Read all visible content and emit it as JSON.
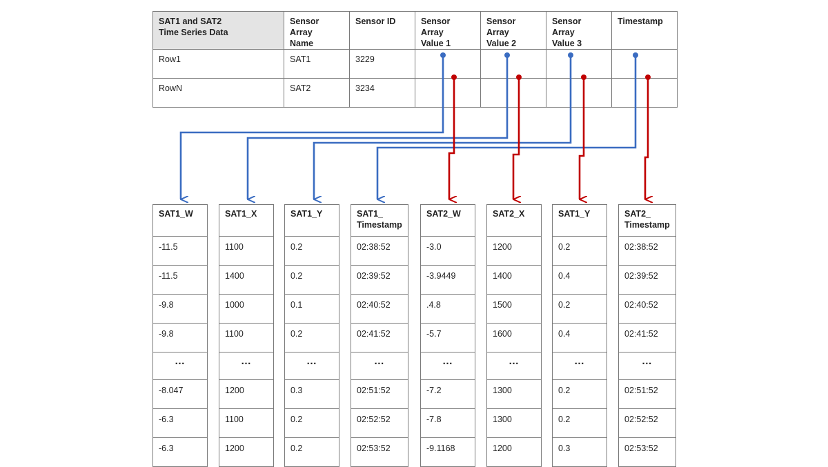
{
  "source_table": {
    "headers": [
      "SAT1 and SAT2\nTime Series Data",
      "Sensor Array\nName",
      "Sensor ID",
      "Sensor Array\nValue 1",
      "Sensor Array\nValue 2",
      "Sensor Array\nValue 3",
      "Timestamp"
    ],
    "rows": [
      [
        "Row1",
        "SAT1",
        "3229",
        "",
        "",
        "",
        ""
      ],
      [
        "RowN",
        "SAT2",
        "3234",
        "",
        "",
        "",
        ""
      ]
    ]
  },
  "column_tables": [
    {
      "header": "SAT1_W",
      "values": [
        "-11.5",
        "-11.5",
        "-9.8",
        "-9.8",
        "...",
        "-8.047",
        "-6.3",
        "-6.3"
      ]
    },
    {
      "header": "SAT1_X",
      "values": [
        "1100",
        "1400",
        "1000",
        "1100",
        "...",
        "1200",
        "1100",
        "1200"
      ]
    },
    {
      "header": "SAT1_Y",
      "values": [
        "0.2",
        "0.2",
        "0.1",
        "0.2",
        "...",
        "0.3",
        "0.2",
        "0.2"
      ]
    },
    {
      "header": "SAT1_\nTimestamp",
      "values": [
        "02:38:52",
        "02:39:52",
        "02:40:52",
        "02:41:52",
        "...",
        "02:51:52",
        "02:52:52",
        "02:53:52"
      ]
    },
    {
      "header": "SAT2_W",
      "values": [
        "-3.0",
        "-3.9449",
        ".4.8",
        "-5.7",
        "...",
        "-7.2",
        "-7.8",
        "-9.1168"
      ]
    },
    {
      "header": "SAT2_X",
      "values": [
        "1200",
        "1400",
        "1500",
        "1600",
        "...",
        "1300",
        "1300",
        "1200"
      ]
    },
    {
      "header": "SAT1_Y",
      "values": [
        "0.2",
        "0.4",
        "0.2",
        "0.4",
        "...",
        "0.2",
        "0.2",
        "0.3"
      ]
    },
    {
      "header": "SAT2_\nTimestamp",
      "values": [
        "02:38:52",
        "02:39:52",
        "02:40:52",
        "02:41:52",
        "...",
        "02:51:52",
        "02:52:52",
        "02:53:52"
      ]
    }
  ],
  "colors": {
    "sat1_connector": "#3a6cc1",
    "sat2_connector": "#c00000",
    "header_fill": "#e4e4e4",
    "border": "#7a7a7a"
  },
  "icons": [
    "arrow-down-icon",
    "connector-dot-icon"
  ]
}
